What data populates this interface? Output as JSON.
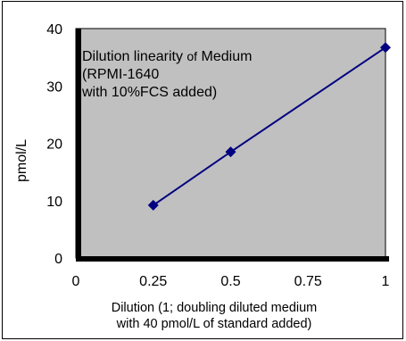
{
  "chart_data": {
    "type": "line",
    "title": "",
    "xlabel_line1": "Dilution (1; doubling diluted medium",
    "xlabel_line2": "with 40 pmol/L of standard added)",
    "ylabel": "pmol/L",
    "annotation_line1_a": "Dilution linearity ",
    "annotation_line1_b": "of",
    "annotation_line1_c": " Medium",
    "annotation_line2": "(RPMI-1640",
    "annotation_line3": "with 10%FCS added)",
    "x_ticks": [
      "0",
      "0.25",
      "0.5",
      "0.75",
      "1"
    ],
    "y_ticks": [
      "0",
      "10",
      "20",
      "30",
      "40"
    ],
    "xlim": [
      0,
      1
    ],
    "ylim": [
      0,
      40
    ],
    "grid": false,
    "plot_background": "#c0c0c0",
    "series": [
      {
        "color": "#000080",
        "marker": "diamond",
        "x": [
          0.25,
          0.5,
          1
        ],
        "y": [
          9.2,
          18.5,
          36.7
        ]
      }
    ]
  }
}
